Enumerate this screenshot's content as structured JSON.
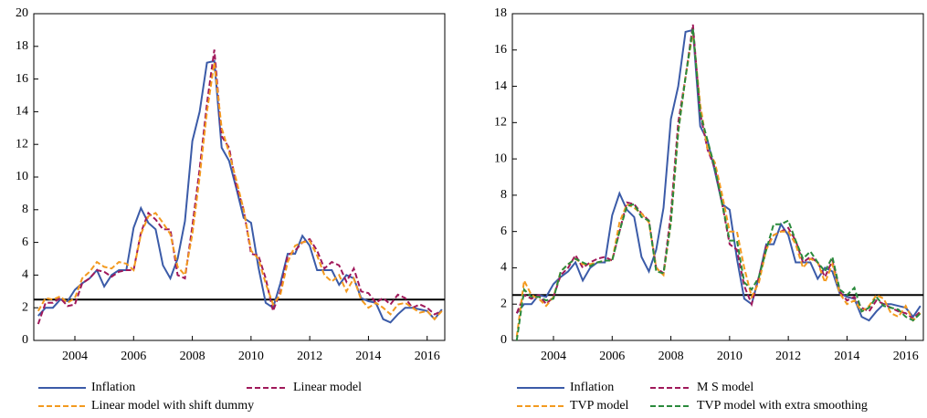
{
  "chart_data": [
    {
      "type": "line",
      "x": [
        2002.75,
        2003,
        2003.25,
        2003.5,
        2003.75,
        2004,
        2004.25,
        2004.5,
        2004.75,
        2005,
        2005.25,
        2005.5,
        2005.75,
        2006,
        2006.25,
        2006.5,
        2006.75,
        2007,
        2007.25,
        2007.5,
        2007.75,
        2008,
        2008.25,
        2008.5,
        2008.75,
        2009,
        2009.25,
        2009.5,
        2009.75,
        2010,
        2010.25,
        2010.5,
        2010.75,
        2011,
        2011.25,
        2011.5,
        2011.75,
        2012,
        2012.25,
        2012.5,
        2012.75,
        2013,
        2013.25,
        2013.5,
        2013.75,
        2014,
        2014.25,
        2014.5,
        2014.75,
        2015,
        2015.25,
        2015.5,
        2015.75,
        2016,
        2016.25,
        2016.5
      ],
      "xlim": [
        2002.6,
        2016.6
      ],
      "xticks": [
        2004,
        2006,
        2008,
        2010,
        2012,
        2014,
        2016
      ],
      "ylim": [
        0,
        20
      ],
      "yticks": [
        0,
        2,
        4,
        6,
        8,
        10,
        12,
        14,
        16,
        18,
        20
      ],
      "reference_line": 2.5,
      "series": [
        {
          "name": "Inflation",
          "color": "#3b5ba8",
          "dashed": false,
          "values": [
            1.5,
            2.0,
            2.0,
            2.5,
            2.4,
            3.1,
            3.5,
            3.8,
            4.3,
            3.3,
            4.0,
            4.3,
            4.3,
            6.9,
            8.1,
            7.2,
            6.8,
            4.6,
            3.8,
            5.0,
            7.3,
            12.2,
            14.0,
            17.0,
            17.1,
            11.8,
            11.0,
            9.3,
            7.5,
            7.2,
            4.5,
            2.3,
            2.0,
            3.5,
            5.3,
            5.3,
            6.4,
            5.8,
            4.3,
            4.3,
            4.3,
            3.4,
            4.0,
            3.8,
            2.6,
            2.4,
            2.3,
            1.3,
            1.1,
            1.6,
            2.0,
            2.0,
            1.9,
            1.8,
            1.3,
            1.9
          ]
        },
        {
          "name": "Linear model",
          "color": "#a0185a",
          "dashed": true,
          "values": [
            1.0,
            2.3,
            2.3,
            2.6,
            2.1,
            2.2,
            3.5,
            3.8,
            4.3,
            4.2,
            3.9,
            4.2,
            4.3,
            4.3,
            6.6,
            7.8,
            7.4,
            6.8,
            6.8,
            4.0,
            3.8,
            7.0,
            10.5,
            14.5,
            17.8,
            12.5,
            11.8,
            9.5,
            8.0,
            5.3,
            5.2,
            3.8,
            1.8,
            3.0,
            5.2,
            5.5,
            6.0,
            6.2,
            5.5,
            4.4,
            4.8,
            4.6,
            3.6,
            4.4,
            3.0,
            2.9,
            2.3,
            2.6,
            2.2,
            2.8,
            2.6,
            2.0,
            2.2,
            2.0,
            1.6,
            1.8
          ]
        },
        {
          "name": "Linear model with shift dummy",
          "color": "#f39a1f",
          "dashed": true,
          "values": [
            1.8,
            2.6,
            2.5,
            2.7,
            2.3,
            2.6,
            3.8,
            4.2,
            4.8,
            4.5,
            4.4,
            4.8,
            4.7,
            4.3,
            6.5,
            7.6,
            7.8,
            7.2,
            6.5,
            4.5,
            4.0,
            6.5,
            10.0,
            14.0,
            17.0,
            13.0,
            11.5,
            9.8,
            8.0,
            5.5,
            5.0,
            3.5,
            2.2,
            2.8,
            4.8,
            5.8,
            6.0,
            6.1,
            5.2,
            4.0,
            3.6,
            4.0,
            3.0,
            3.8,
            2.5,
            2.0,
            2.3,
            2.0,
            1.6,
            2.2,
            2.3,
            2.0,
            1.7,
            1.8,
            1.3,
            1.8
          ]
        }
      ]
    },
    {
      "type": "line",
      "x": [
        2002.75,
        2003,
        2003.25,
        2003.5,
        2003.75,
        2004,
        2004.25,
        2004.5,
        2004.75,
        2005,
        2005.25,
        2005.5,
        2005.75,
        2006,
        2006.25,
        2006.5,
        2006.75,
        2007,
        2007.25,
        2007.5,
        2007.75,
        2008,
        2008.25,
        2008.5,
        2008.75,
        2009,
        2009.25,
        2009.5,
        2009.75,
        2010,
        2010.25,
        2010.5,
        2010.75,
        2011,
        2011.25,
        2011.5,
        2011.75,
        2012,
        2012.25,
        2012.5,
        2012.75,
        2013,
        2013.25,
        2013.5,
        2013.75,
        2014,
        2014.25,
        2014.5,
        2014.75,
        2015,
        2015.25,
        2015.5,
        2015.75,
        2016,
        2016.25,
        2016.5
      ],
      "xlim": [
        2002.6,
        2016.6
      ],
      "xticks": [
        2004,
        2006,
        2008,
        2010,
        2012,
        2014,
        2016
      ],
      "ylim": [
        0,
        18
      ],
      "yticks": [
        0,
        2,
        4,
        6,
        8,
        10,
        12,
        14,
        16,
        18
      ],
      "reference_line": 2.5,
      "series": [
        {
          "name": "Inflation",
          "color": "#3b5ba8",
          "dashed": false,
          "values": [
            1.5,
            2.0,
            2.0,
            2.5,
            2.4,
            3.1,
            3.5,
            3.8,
            4.3,
            3.3,
            4.0,
            4.3,
            4.3,
            6.9,
            8.1,
            7.2,
            6.8,
            4.6,
            3.8,
            5.0,
            7.3,
            12.2,
            14.0,
            17.0,
            17.1,
            11.8,
            11.0,
            9.3,
            7.5,
            7.2,
            4.5,
            2.3,
            2.0,
            3.5,
            5.3,
            5.3,
            6.4,
            5.8,
            4.3,
            4.3,
            4.3,
            3.4,
            4.0,
            3.8,
            2.6,
            2.4,
            2.3,
            1.3,
            1.1,
            1.6,
            2.0,
            2.0,
            1.9,
            1.8,
            1.3,
            1.9
          ]
        },
        {
          "name": "M S model",
          "color": "#a0185a",
          "dashed": true,
          "values": [
            1.5,
            2.5,
            2.3,
            2.5,
            2.0,
            2.4,
            3.6,
            4.0,
            4.7,
            4.0,
            4.3,
            4.5,
            4.6,
            4.4,
            6.0,
            7.6,
            7.5,
            7.0,
            6.6,
            4.0,
            3.7,
            7.0,
            12.0,
            14.5,
            17.4,
            12.5,
            10.5,
            9.5,
            7.5,
            5.3,
            5.0,
            3.0,
            2.0,
            3.5,
            5.2,
            5.8,
            6.0,
            6.2,
            5.5,
            4.3,
            4.6,
            4.3,
            3.5,
            4.4,
            2.7,
            2.2,
            2.4,
            1.8,
            1.6,
            2.2,
            2.0,
            1.8,
            1.6,
            1.5,
            1.2,
            1.6
          ]
        },
        {
          "name": "TVP model",
          "color": "#f39a1f",
          "dashed": true,
          "values": [
            0.2,
            3.3,
            2.5,
            2.3,
            1.9,
            2.4,
            3.8,
            4.2,
            4.5,
            4.2,
            4.2,
            4.3,
            4.4,
            4.4,
            6.5,
            7.5,
            7.3,
            7.0,
            6.5,
            4.0,
            3.6,
            6.5,
            11.5,
            14.5,
            17.0,
            13.0,
            10.5,
            9.8,
            8.0,
            6.0,
            6.0,
            4.0,
            2.4,
            3.2,
            5.0,
            5.8,
            6.0,
            6.0,
            5.3,
            4.0,
            4.5,
            4.3,
            3.2,
            4.2,
            2.6,
            2.0,
            2.2,
            1.6,
            1.9,
            2.5,
            2.3,
            1.5,
            1.3,
            1.9,
            1.1,
            1.5
          ]
        },
        {
          "name": "TVP model with extra smoothing",
          "color": "#2a8a3c",
          "dashed": true,
          "values": [
            0.0,
            2.8,
            2.4,
            2.4,
            2.2,
            2.3,
            3.8,
            4.2,
            4.5,
            4.3,
            4.1,
            4.3,
            4.4,
            4.4,
            6.0,
            7.4,
            7.5,
            6.8,
            6.6,
            3.8,
            3.7,
            6.5,
            11.5,
            14.5,
            17.2,
            12.5,
            11.0,
            9.5,
            7.5,
            5.5,
            5.5,
            3.2,
            2.8,
            3.5,
            5.0,
            6.4,
            6.4,
            6.6,
            5.5,
            4.5,
            4.9,
            4.3,
            3.8,
            4.6,
            2.8,
            2.5,
            2.9,
            1.6,
            1.8,
            2.4,
            1.9,
            1.8,
            1.7,
            1.3,
            1.1,
            1.5
          ]
        }
      ]
    }
  ]
}
